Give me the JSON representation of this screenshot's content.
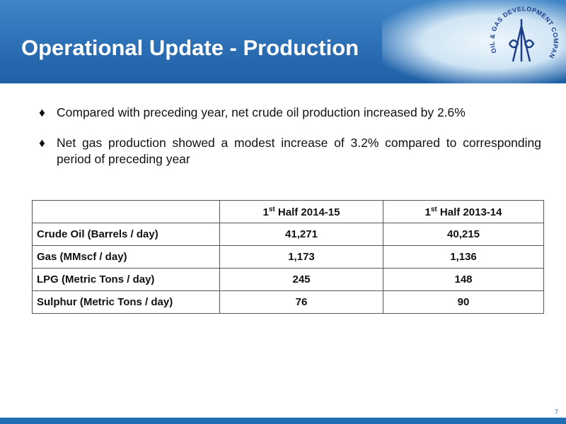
{
  "header": {
    "title": "Operational Update - Production",
    "logo_text": "OIL & GAS DEVELOPMENT COMPANY LIMITED"
  },
  "bullets": [
    "Compared with preceding year, net crude oil production increased by 2.6%",
    "Net gas production showed a modest increase of 3.2% compared to corresponding period of preceding year"
  ],
  "table": {
    "columns": [
      {
        "num": "1",
        "sup": "st",
        "rest": "Half  2014-15"
      },
      {
        "num": "1",
        "sup": "st",
        "rest": "Half 2013-14"
      }
    ],
    "rows": [
      [
        "Crude Oil (Barrels / day)",
        "41,271",
        "40,215"
      ],
      [
        "Gas (MMscf / day)",
        "1,173",
        "1,136"
      ],
      [
        "LPG (Metric Tons / day)",
        "245",
        "148"
      ],
      [
        "Sulphur (Metric Tons / day)",
        "76",
        "90"
      ]
    ]
  },
  "page_number": "7"
}
